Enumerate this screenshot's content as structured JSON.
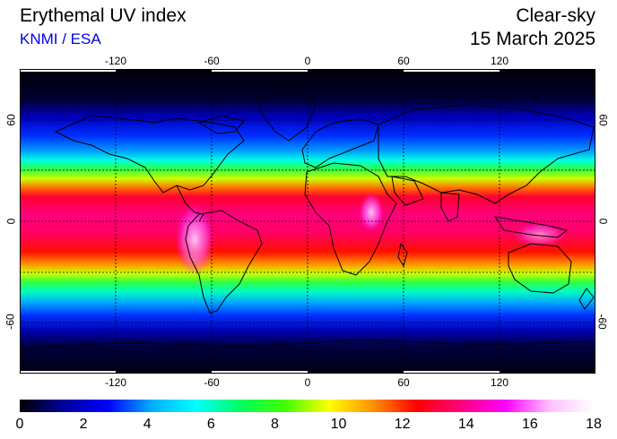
{
  "header": {
    "title": "Erythemal UV index",
    "source": "KNMI / ESA",
    "condition": "Clear-sky",
    "date": "15 March 2025"
  },
  "map": {
    "lon_range": [
      -180,
      180
    ],
    "lat_range": [
      -90,
      90
    ],
    "lon_ticks": [
      "-120",
      "-60",
      "0",
      "60",
      "120"
    ],
    "lat_ticks": [
      "60",
      "0",
      "-60"
    ],
    "grid": true,
    "projection": "equirectangular"
  },
  "colorbar": {
    "min": 0,
    "max": 18,
    "labels": [
      "0",
      "2",
      "4",
      "6",
      "8",
      "10",
      "12",
      "14",
      "16",
      "18"
    ],
    "colors": [
      "#000000",
      "#0000a0",
      "#0000ff",
      "#00b0ff",
      "#00ffff",
      "#00ff60",
      "#40ff00",
      "#ffff00",
      "#ff9000",
      "#ff0000",
      "#ff0080",
      "#ff00ff",
      "#ffc0ff",
      "#ffffff"
    ]
  }
}
